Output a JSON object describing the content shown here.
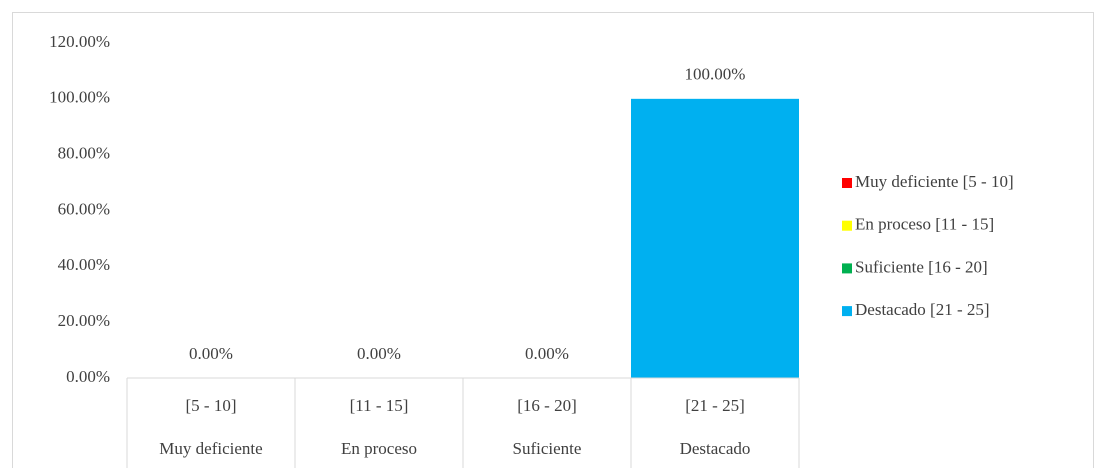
{
  "chart_data": {
    "type": "bar",
    "categories": [
      "[5 - 10]",
      "[11 - 15]",
      "[16 - 20]",
      "[21 - 25]"
    ],
    "category_groups": [
      "Muy deficiente",
      "En proceso",
      "Suficiente",
      "Destacado"
    ],
    "values": [
      0,
      0,
      0,
      100
    ],
    "value_labels": [
      "0.00%",
      "0.00%",
      "0.00%",
      "100.00%"
    ],
    "colors": [
      "#ff0000",
      "#ffff00",
      "#00b050",
      "#00b0f0"
    ],
    "legend_labels": [
      "Muy deficiente [5 - 10]",
      "En proceso [11 - 15]",
      "Suficiente [16 - 20]",
      "Destacado [21 - 25]"
    ],
    "ylim": [
      0,
      120
    ],
    "yticks": [
      {
        "value": 0,
        "label": "0.00%"
      },
      {
        "value": 20,
        "label": "20.00%"
      },
      {
        "value": 40,
        "label": "40.00%"
      },
      {
        "value": 60,
        "label": "60.00%"
      },
      {
        "value": 80,
        "label": "80.00%"
      },
      {
        "value": 100,
        "label": "100.00%"
      },
      {
        "value": 120,
        "label": "120.00%"
      }
    ],
    "grid": false,
    "legend_position": "right"
  }
}
